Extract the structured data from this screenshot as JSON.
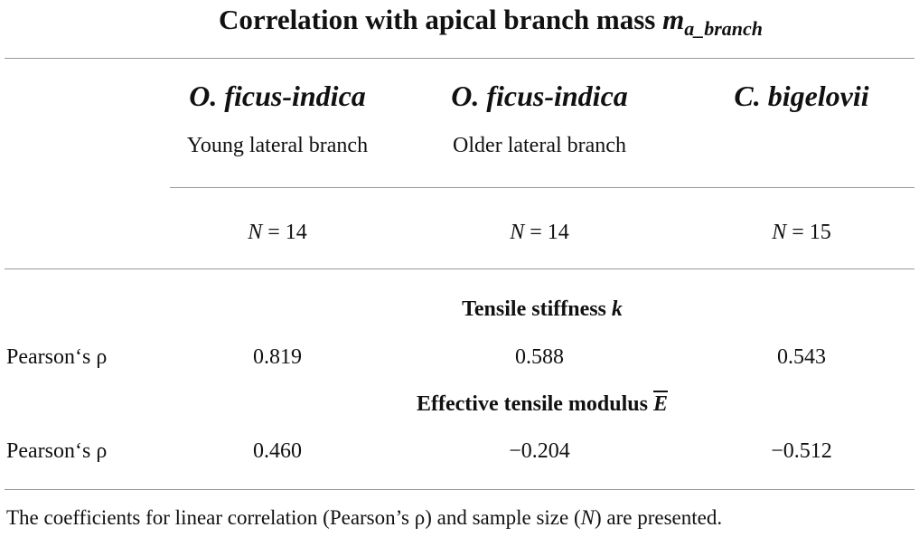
{
  "title": {
    "text": "Correlation with apical branch mass",
    "symbol": "m",
    "subscript": "a_branch"
  },
  "columns": [
    {
      "species": "O. ficus-indica",
      "subtitle": "Young lateral branch",
      "n_symbol": "N",
      "n_value": "= 14"
    },
    {
      "species": "O. ficus-indica",
      "subtitle": "Older lateral branch",
      "n_symbol": "N",
      "n_value": "= 14"
    },
    {
      "species": "C. bigelovii",
      "subtitle": "",
      "n_symbol": "N",
      "n_value": "= 15"
    }
  ],
  "sections": [
    {
      "heading": "Tensile stiffness",
      "symbol": "k",
      "row_label": "Pearson‘s ρ",
      "values": [
        "0.819",
        "0.588",
        "0.543"
      ]
    },
    {
      "heading": "Effective tensile modulus",
      "symbol": "E",
      "row_label": "Pearson‘s ρ",
      "values": [
        "0.460",
        "−0.204",
        "−0.512"
      ]
    }
  ],
  "footer": [
    "The coefficients for linear correlation (Pearson’s ρ) and sample size (",
    "N",
    ") are presented."
  ]
}
